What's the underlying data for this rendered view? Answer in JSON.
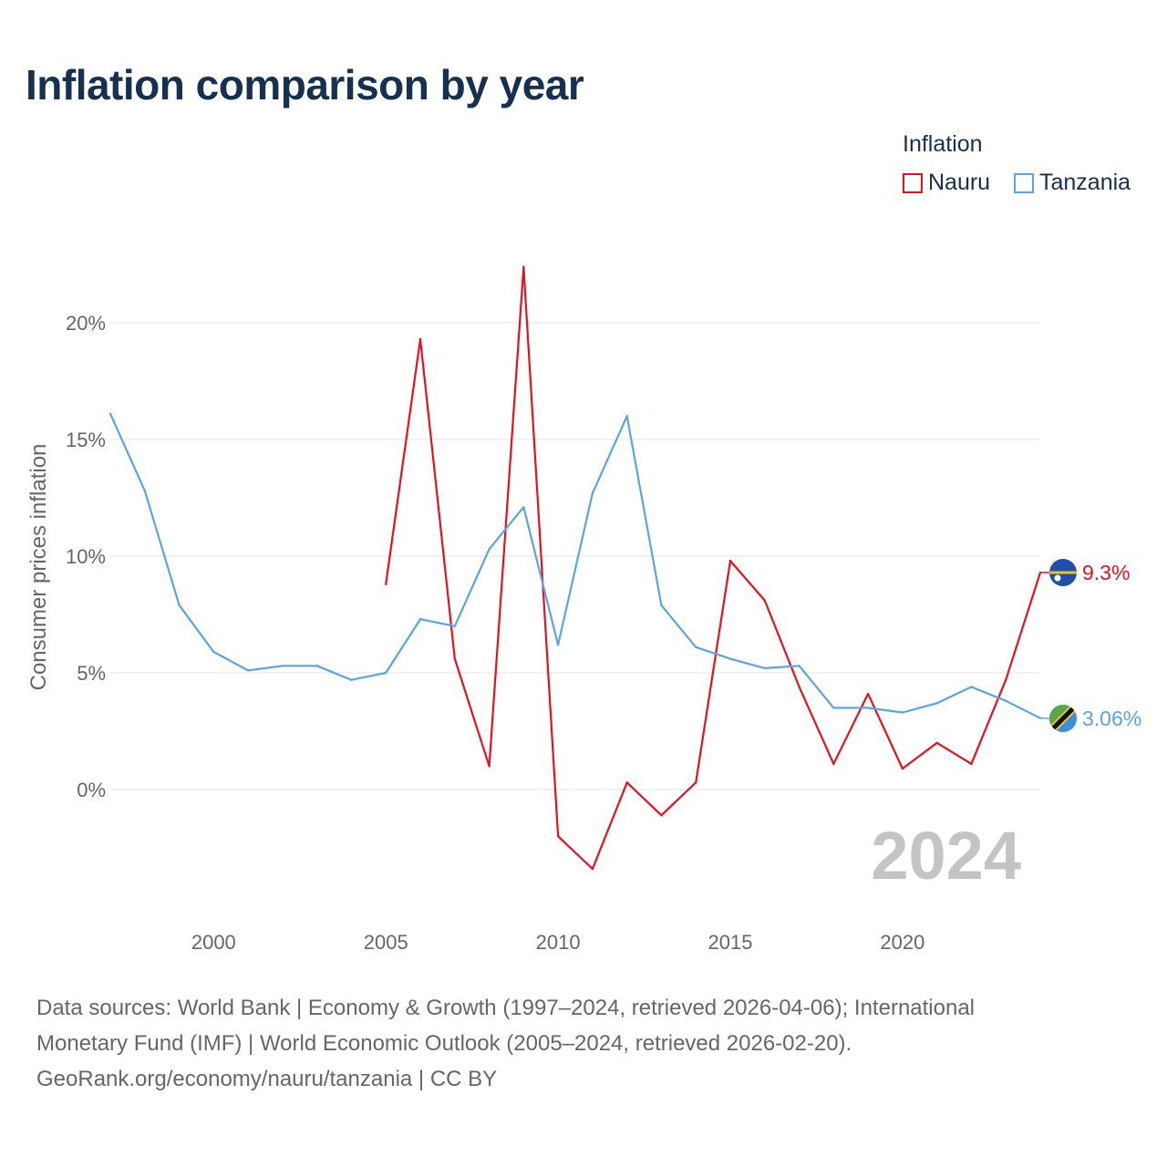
{
  "title": "Inflation comparison by year",
  "legend": {
    "title": "Inflation",
    "items": [
      {
        "name": "Nauru",
        "color": "#e8101e"
      },
      {
        "name": "Tanzania",
        "color": "#5ba4e6"
      }
    ]
  },
  "year_label": "2024",
  "chart_data": {
    "type": "line",
    "title": "Inflation comparison by year",
    "xlabel": "",
    "ylabel": "Consumer prices inflation",
    "xlim": [
      1997,
      2024
    ],
    "ylim": [
      -5,
      23
    ],
    "x_ticks": [
      2000,
      2005,
      2010,
      2015,
      2020
    ],
    "y_ticks": [
      0,
      5,
      10,
      15,
      20
    ],
    "y_tick_labels": [
      "0%",
      "5%",
      "10%",
      "15%",
      "20%"
    ],
    "grid": true,
    "legend_position": "top-right",
    "series": [
      {
        "name": "Nauru",
        "color": "#e8101e",
        "end_label": "9.3%",
        "x": [
          2005,
          2006,
          2007,
          2008,
          2009,
          2010,
          2011,
          2012,
          2013,
          2014,
          2015,
          2016,
          2017,
          2018,
          2019,
          2020,
          2021,
          2022,
          2023,
          2024
        ],
        "values": [
          8.8,
          19.3,
          5.6,
          1.0,
          22.4,
          -2.0,
          -3.4,
          0.3,
          -1.1,
          0.3,
          9.8,
          8.1,
          4.4,
          1.1,
          4.1,
          0.9,
          2.0,
          1.1,
          4.7,
          9.3
        ]
      },
      {
        "name": "Tanzania",
        "color": "#5ba4e6",
        "end_label": "3.06%",
        "x": [
          1997,
          1998,
          1999,
          2000,
          2001,
          2002,
          2003,
          2004,
          2005,
          2006,
          2007,
          2008,
          2009,
          2010,
          2011,
          2012,
          2013,
          2014,
          2015,
          2016,
          2017,
          2018,
          2019,
          2020,
          2021,
          2022,
          2023,
          2024
        ],
        "values": [
          16.1,
          12.8,
          7.9,
          5.9,
          5.1,
          5.3,
          5.3,
          4.7,
          5.0,
          7.3,
          7.0,
          10.3,
          12.1,
          6.2,
          12.7,
          16.0,
          7.9,
          6.1,
          5.6,
          5.2,
          5.3,
          3.5,
          3.5,
          3.3,
          3.7,
          4.4,
          3.8,
          3.06
        ]
      }
    ]
  },
  "footer": {
    "line1": "Data sources: World Bank | Economy & Growth (1997–2024, retrieved 2026-04-06); International",
    "line2": "Monetary Fund (IMF) | World Economic Outlook (2005–2024, retrieved 2026-02-20).",
    "line3": "GeoRank.org/economy/nauru/tanzania | CC BY"
  }
}
